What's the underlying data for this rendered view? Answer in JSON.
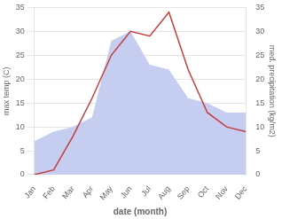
{
  "chart_data": {
    "type": "line",
    "xlabel": "date (month)",
    "ylabel": "max temp (C)",
    "y2label": "med. precipitation (kg/m2)",
    "categories": [
      "Jan",
      "Feb",
      "Mar",
      "Apr",
      "May",
      "Jun",
      "Jul",
      "Aug",
      "Sep",
      "Oct",
      "Nov",
      "Dec"
    ],
    "series": [
      {
        "type": "area",
        "color": "#c5cef0",
        "values": [
          7,
          9,
          10,
          12,
          28,
          30,
          23,
          22,
          16,
          15,
          13,
          13
        ]
      },
      {
        "type": "line",
        "color": "#c43c3c",
        "values": [
          0,
          1,
          8,
          16,
          25,
          30,
          29,
          34,
          22,
          13,
          10,
          9
        ]
      }
    ],
    "ylim": [
      0,
      35
    ],
    "yticks": [
      0,
      5,
      10,
      15,
      20,
      25,
      30,
      35
    ],
    "y2lim": [
      0,
      35
    ],
    "y2ticks": [
      0,
      5,
      10,
      15,
      20,
      25,
      30,
      35
    ],
    "grid": "y"
  }
}
